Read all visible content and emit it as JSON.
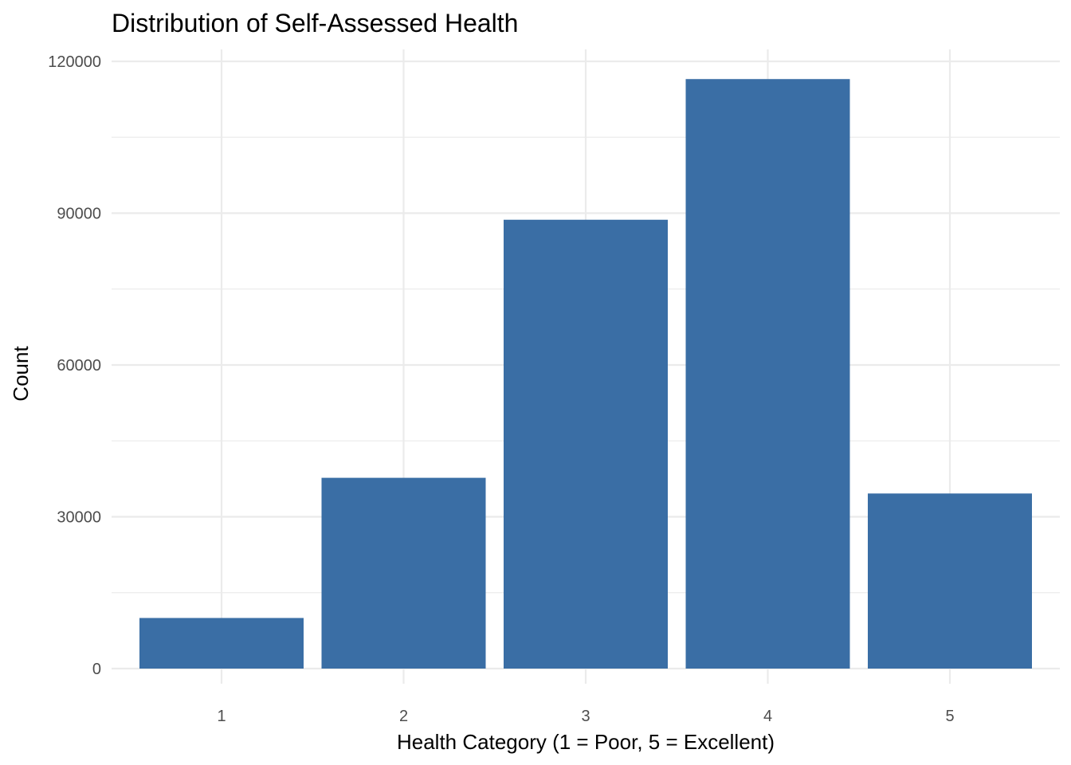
{
  "chart_data": {
    "type": "bar",
    "title": "Distribution of Self-Assessed Health",
    "xlabel": "Health Category (1 = Poor, 5 = Excellent)",
    "ylabel": "Count",
    "categories": [
      "1",
      "2",
      "3",
      "4",
      "5"
    ],
    "values": [
      10000,
      37700,
      88700,
      116500,
      34600
    ],
    "ylim": [
      0,
      120000
    ],
    "yticks": [
      0,
      30000,
      60000,
      90000,
      120000
    ],
    "ytick_labels": [
      "0",
      "30000",
      "60000",
      "90000",
      "120000"
    ],
    "bar_color": "#3A6EA5",
    "grid": true,
    "legend": "none"
  }
}
